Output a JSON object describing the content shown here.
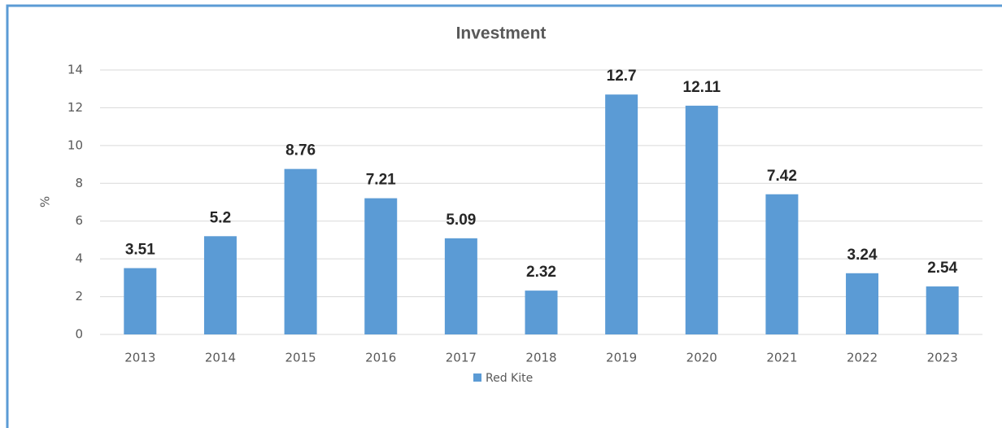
{
  "chart_data": {
    "type": "bar",
    "title": "Investment",
    "y_label": "%",
    "categories": [
      "2013",
      "2014",
      "2015",
      "2016",
      "2017",
      "2018",
      "2019",
      "2020",
      "2021",
      "2022",
      "2023"
    ],
    "series": [
      {
        "name": "Red Kite",
        "color": "#5b9bd5",
        "values": [
          3.51,
          5.2,
          8.76,
          7.21,
          5.09,
          2.32,
          12.7,
          12.11,
          7.42,
          3.24,
          2.54
        ]
      }
    ],
    "ylim": [
      0,
      14
    ],
    "yticks": [
      0,
      2,
      4,
      6,
      8,
      10,
      12,
      14
    ],
    "grid": true,
    "legend": "bottom"
  }
}
